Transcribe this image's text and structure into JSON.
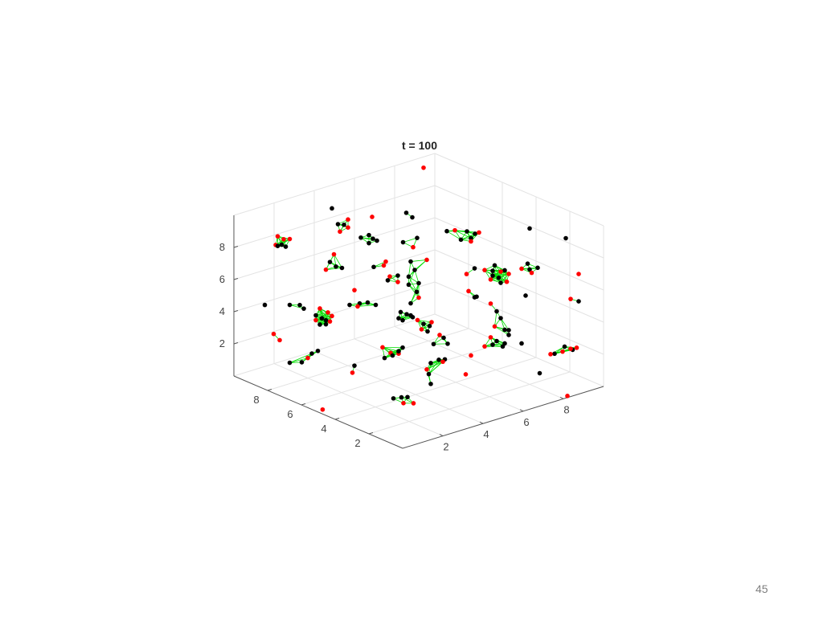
{
  "page_number": "45",
  "chart_data": {
    "type": "scatter3d",
    "title": "t = 100",
    "xlim": [
      0,
      10
    ],
    "ylim": [
      0,
      10
    ],
    "zlim": [
      0,
      10
    ],
    "xticks": [
      2,
      4,
      6,
      8
    ],
    "yticks": [
      2,
      4,
      6,
      8
    ],
    "zticks": [
      2,
      4,
      6,
      8
    ],
    "grid": true,
    "colors": {
      "r": "#ff0000",
      "k": "#000000",
      "edge": "#00dd00",
      "axis": "#555555",
      "grid": "#e3e3e3"
    },
    "clusters": [
      {
        "nodes": [
          [
            8.6,
            9,
            10.1,
            "r"
          ]
        ]
      },
      {
        "nodes": [
          [
            3.2,
            8,
            10.1,
            "k"
          ]
        ]
      },
      {
        "nodes": [
          [
            5.2,
            8,
            8.8,
            "r"
          ]
        ]
      },
      {
        "nodes": [
          [
            8.0,
            2,
            9.7,
            "k"
          ]
        ]
      },
      {
        "nodes": [
          [
            9.8,
            2,
            8.4,
            "k"
          ]
        ]
      },
      {
        "nodes": [
          [
            9.6,
            1,
            6.7,
            "r"
          ]
        ]
      },
      {
        "nodes": [
          [
            0.7,
            9,
            4.6,
            "k"
          ]
        ]
      },
      {
        "nodes": [
          [
            1.8,
            5,
            6.9,
            "r"
          ]
        ]
      },
      {
        "nodes": [
          [
            7.8,
            2,
            5.6,
            "k"
          ]
        ]
      },
      {
        "nodes": [
          [
            0.3,
            8,
            3.4,
            "r"
          ],
          [
            0.6,
            8,
            2.9,
            "r"
          ]
        ]
      },
      {
        "nodes": [
          [
            1.8,
            5,
            2.2,
            "k"
          ],
          [
            1.7,
            5,
            1.8,
            "r"
          ]
        ]
      },
      {
        "nodes": [
          [
            0.3,
            5.1,
            0,
            "r"
          ]
        ]
      },
      {
        "nodes": [
          [
            6.5,
            4,
            0.3,
            "r"
          ]
        ]
      },
      {
        "nodes": [
          [
            8.5,
            2,
            0.5,
            "k"
          ]
        ]
      },
      {
        "nodes": [
          [
            8.2,
            0,
            0.1,
            "r"
          ]
        ]
      },
      {
        "nodes": [
          [
            7.6,
            5,
            0.6,
            "r"
          ]
        ]
      },
      {
        "nodes": [
          [
            7.6,
            2,
            2.7,
            "k"
          ]
        ]
      },
      {
        "nodes": [
          [
            9.2,
            1,
            5.3,
            "r"
          ],
          [
            9.6,
            1,
            5.0,
            "k"
          ]
        ]
      },
      {
        "nodes": [
          [
            0.5,
            8,
            9.4,
            "r"
          ],
          [
            0.8,
            8,
            9.1,
            "r"
          ],
          [
            1.1,
            8,
            9.0,
            "r"
          ],
          [
            0.4,
            8,
            8.9,
            "r"
          ],
          [
            0.5,
            8,
            8.8,
            "k"
          ],
          [
            0.9,
            8,
            8.6,
            "k"
          ],
          [
            0.7,
            8,
            8.8,
            "k"
          ]
        ]
      },
      {
        "nodes": [
          [
            3.5,
            8,
            9.0,
            "k"
          ],
          [
            4.0,
            8,
            9.1,
            "r"
          ],
          [
            4.0,
            8,
            8.6,
            "r"
          ],
          [
            3.6,
            8,
            8.5,
            "r"
          ],
          [
            3.8,
            8,
            8.85,
            "k"
          ]
        ]
      },
      {
        "nodes": [
          [
            3.8,
            7,
            8.5,
            "k"
          ],
          [
            4.2,
            7,
            8.5,
            "k"
          ],
          [
            4.6,
            7,
            8.0,
            "k"
          ],
          [
            4.2,
            7,
            8.0,
            "k"
          ],
          [
            4.4,
            7,
            8.2,
            "k"
          ]
        ]
      },
      {
        "nodes": [
          [
            6.9,
            8,
            8.4,
            "k"
          ],
          [
            7.2,
            8,
            8.0,
            "k"
          ]
        ]
      },
      {
        "nodes": [
          [
            5.9,
            7,
            7.4,
            "k"
          ],
          [
            6.6,
            7,
            7.4,
            "k"
          ],
          [
            6.4,
            7,
            6.9,
            "r"
          ]
        ]
      },
      {
        "nodes": [
          [
            3.1,
            8,
            6.8,
            "k"
          ],
          [
            3.4,
            8,
            6.4,
            "k"
          ],
          [
            3.7,
            8,
            6.2,
            "k"
          ],
          [
            2.9,
            8,
            6.4,
            "r"
          ],
          [
            3.3,
            8,
            7.2,
            "r"
          ]
        ]
      },
      {
        "nodes": [
          [
            3.6,
            6,
            7.2,
            "k"
          ],
          [
            4.2,
            6,
            7.3,
            "r"
          ],
          [
            4.1,
            6,
            7.1,
            "r"
          ]
        ]
      },
      {
        "nodes": [
          [
            4.4,
            6,
            6.3,
            "r"
          ],
          [
            4.8,
            6,
            5.8,
            "r"
          ],
          [
            4.3,
            6,
            6.1,
            "k"
          ],
          [
            4.8,
            6,
            6.2,
            "k"
          ]
        ]
      },
      {
        "nodes": [
          [
            4.6,
            5,
            7.6,
            "k"
          ],
          [
            5.4,
            5,
            7.4,
            "r"
          ],
          [
            4.8,
            5,
            7.0,
            "k"
          ],
          [
            4.5,
            5,
            6.2,
            "k"
          ],
          [
            4.9,
            5,
            5.6,
            "k"
          ],
          [
            4.6,
            5,
            5.0,
            "k"
          ],
          [
            5.0,
            5,
            5.2,
            "r"
          ],
          [
            4.5,
            5,
            6.7,
            "k"
          ],
          [
            5.0,
            5,
            6.1,
            "k"
          ]
        ]
      },
      {
        "nodes": [
          [
            6.4,
            5,
            8.8,
            "k"
          ],
          [
            6.8,
            5,
            8.7,
            "r"
          ],
          [
            7.4,
            5,
            8.4,
            "k"
          ],
          [
            7.8,
            5,
            8.1,
            "k"
          ],
          [
            7.6,
            5,
            7.9,
            "k"
          ],
          [
            7.1,
            5,
            8.0,
            "k"
          ],
          [
            8.0,
            5,
            8.1,
            "r"
          ],
          [
            7.6,
            5,
            7.7,
            "r"
          ]
        ]
      },
      {
        "nodes": [
          [
            7.1,
            3,
            7.3,
            "k"
          ],
          [
            7.6,
            3,
            6.8,
            "k"
          ],
          [
            7.3,
            3,
            6.45,
            "k"
          ],
          [
            7.0,
            3,
            6.7,
            "k"
          ],
          [
            7.4,
            3,
            6.1,
            "k"
          ],
          [
            6.6,
            3,
            7.2,
            "r"
          ],
          [
            7.8,
            3,
            6.5,
            "r"
          ],
          [
            6.9,
            3,
            6.5,
            "r"
          ],
          [
            7.7,
            3,
            6.05,
            "r"
          ],
          [
            7.4,
            3,
            6.8,
            "r"
          ],
          [
            7.0,
            3,
            7.0,
            "k"
          ]
        ]
      },
      {
        "nodes": [
          [
            7.6,
            2,
            7.35,
            "r"
          ],
          [
            7.9,
            2,
            7.55,
            "k"
          ],
          [
            8.0,
            2,
            7.15,
            "k"
          ],
          [
            8.1,
            2,
            6.9,
            "r"
          ],
          [
            8.4,
            2,
            7.1,
            "k"
          ]
        ]
      },
      {
        "nodes": [
          [
            6.1,
            3,
            7.5,
            "k"
          ],
          [
            5.7,
            3,
            7.3,
            "r"
          ]
        ]
      },
      {
        "nodes": [
          [
            5.8,
            3,
            6.2,
            "r"
          ],
          [
            6.1,
            3,
            5.7,
            "k"
          ],
          [
            6.2,
            3,
            5.7,
            "k"
          ]
        ]
      },
      {
        "nodes": [
          [
            1.1,
            8,
            4.9,
            "k"
          ],
          [
            1.6,
            8,
            4.7,
            "k"
          ],
          [
            1.8,
            8,
            4.4,
            "k"
          ]
        ]
      },
      {
        "nodes": [
          [
            2.6,
            8,
            4.1,
            "r"
          ],
          [
            3.0,
            8,
            3.7,
            "r"
          ],
          [
            3.2,
            8,
            3.4,
            "r"
          ],
          [
            3.1,
            8,
            3.1,
            "r"
          ],
          [
            2.4,
            8,
            3.45,
            "r"
          ],
          [
            2.7,
            8,
            3.45,
            "k"
          ],
          [
            2.4,
            8,
            3.75,
            "k"
          ],
          [
            2.9,
            8,
            3.25,
            "k"
          ],
          [
            2.6,
            8,
            3.1,
            "k"
          ],
          [
            2.9,
            8,
            3.0,
            "k"
          ]
        ]
      },
      {
        "nodes": [
          [
            2.4,
            6,
            5.3,
            "k"
          ],
          [
            2.9,
            6,
            5.2,
            "k"
          ],
          [
            3.3,
            6,
            5.1,
            "k"
          ],
          [
            3.7,
            6,
            4.8,
            "k"
          ],
          [
            2.8,
            6,
            5.05,
            "r"
          ]
        ]
      },
      {
        "nodes": [
          [
            4.1,
            5,
            4.65,
            "k"
          ],
          [
            4.4,
            5,
            4.4,
            "k"
          ],
          [
            4.6,
            5,
            4.25,
            "k"
          ],
          [
            4.2,
            5,
            4.1,
            "k"
          ],
          [
            4.7,
            5,
            4.1,
            "k"
          ],
          [
            4.0,
            5,
            4.3,
            "k"
          ]
        ]
      },
      {
        "nodes": [
          [
            4.1,
            4,
            4.6,
            "r"
          ],
          [
            4.8,
            4,
            4.2,
            "r"
          ],
          [
            4.3,
            4,
            3.95,
            "r"
          ],
          [
            4.6,
            4,
            3.7,
            "k"
          ],
          [
            4.7,
            4,
            4.0,
            "k"
          ],
          [
            4.4,
            4,
            4.25,
            "k"
          ]
        ]
      },
      {
        "nodes": [
          [
            3.2,
            5,
            2.8,
            "r"
          ],
          [
            3.6,
            5,
            2.3,
            "r"
          ],
          [
            4.0,
            5,
            2.1,
            "r"
          ],
          [
            3.3,
            5,
            2.1,
            "k"
          ],
          [
            3.7,
            5,
            2.1,
            "k"
          ],
          [
            4.2,
            5,
            2.4,
            "k"
          ],
          [
            4.0,
            5,
            2.25,
            "k"
          ]
        ]
      },
      {
        "nodes": [
          [
            5.2,
            4,
            3.25,
            "r"
          ],
          [
            4.9,
            4,
            2.8,
            "k"
          ],
          [
            5.6,
            4,
            2.55,
            "k"
          ],
          [
            5.4,
            4,
            3.0,
            "k"
          ]
        ]
      },
      {
        "nodes": [
          [
            1.1,
            8,
            1.3,
            "k"
          ],
          [
            1.7,
            8,
            1.1,
            "k"
          ],
          [
            2.2,
            8,
            1.45,
            "k"
          ],
          [
            2.5,
            8,
            1.5,
            "k"
          ],
          [
            2.0,
            8,
            1.25,
            "r"
          ]
        ]
      },
      {
        "nodes": [
          [
            5.6,
            5,
            0.9,
            "k"
          ],
          [
            6.0,
            5,
            0.95,
            "k"
          ],
          [
            6.3,
            5,
            0.86,
            "k"
          ],
          [
            5.4,
            5,
            0.58,
            "r"
          ],
          [
            6.2,
            5,
            0.75,
            "r"
          ],
          [
            5.5,
            5,
            0.25,
            "k"
          ],
          [
            5.6,
            5,
            -0.4,
            "k"
          ]
        ]
      },
      {
        "nodes": [
          [
            6.9,
            3,
            2.9,
            "r"
          ],
          [
            6.6,
            3,
            2.45,
            "r"
          ],
          [
            7.0,
            3,
            2.4,
            "k"
          ],
          [
            7.5,
            3,
            2.1,
            "k"
          ],
          [
            7.2,
            3,
            2.55,
            "k"
          ],
          [
            7.6,
            3,
            2.25,
            "k"
          ]
        ]
      },
      {
        "nodes": [
          [
            6.9,
            3,
            5.0,
            "r"
          ],
          [
            7.2,
            3,
            4.4,
            "k"
          ],
          [
            7.4,
            3,
            3.9,
            "k"
          ],
          [
            7.1,
            3,
            3.5,
            "r"
          ],
          [
            7.6,
            3,
            3.1,
            "k"
          ],
          [
            7.8,
            3,
            3.0,
            "k"
          ],
          [
            7.8,
            3,
            2.7,
            "k"
          ]
        ]
      },
      {
        "nodes": [
          [
            8.4,
            1,
            2.2,
            "k"
          ],
          [
            8.9,
            1,
            2.45,
            "k"
          ],
          [
            9.3,
            1,
            2.1,
            "k"
          ],
          [
            8.2,
            1,
            2.25,
            "r"
          ],
          [
            8.8,
            1,
            2.18,
            "r"
          ],
          [
            9.2,
            1,
            2.2,
            "r"
          ],
          [
            9.5,
            1,
            2.15,
            "r"
          ]
        ]
      },
      {
        "nodes": [
          [
            2.9,
            4,
            0.19,
            "k"
          ],
          [
            3.6,
            4,
            0.0,
            "k"
          ],
          [
            3.4,
            4,
            -0.3,
            "r"
          ],
          [
            3.9,
            4,
            -0.5,
            "r"
          ],
          [
            3.3,
            4,
            0.1,
            "k"
          ]
        ]
      }
    ]
  }
}
